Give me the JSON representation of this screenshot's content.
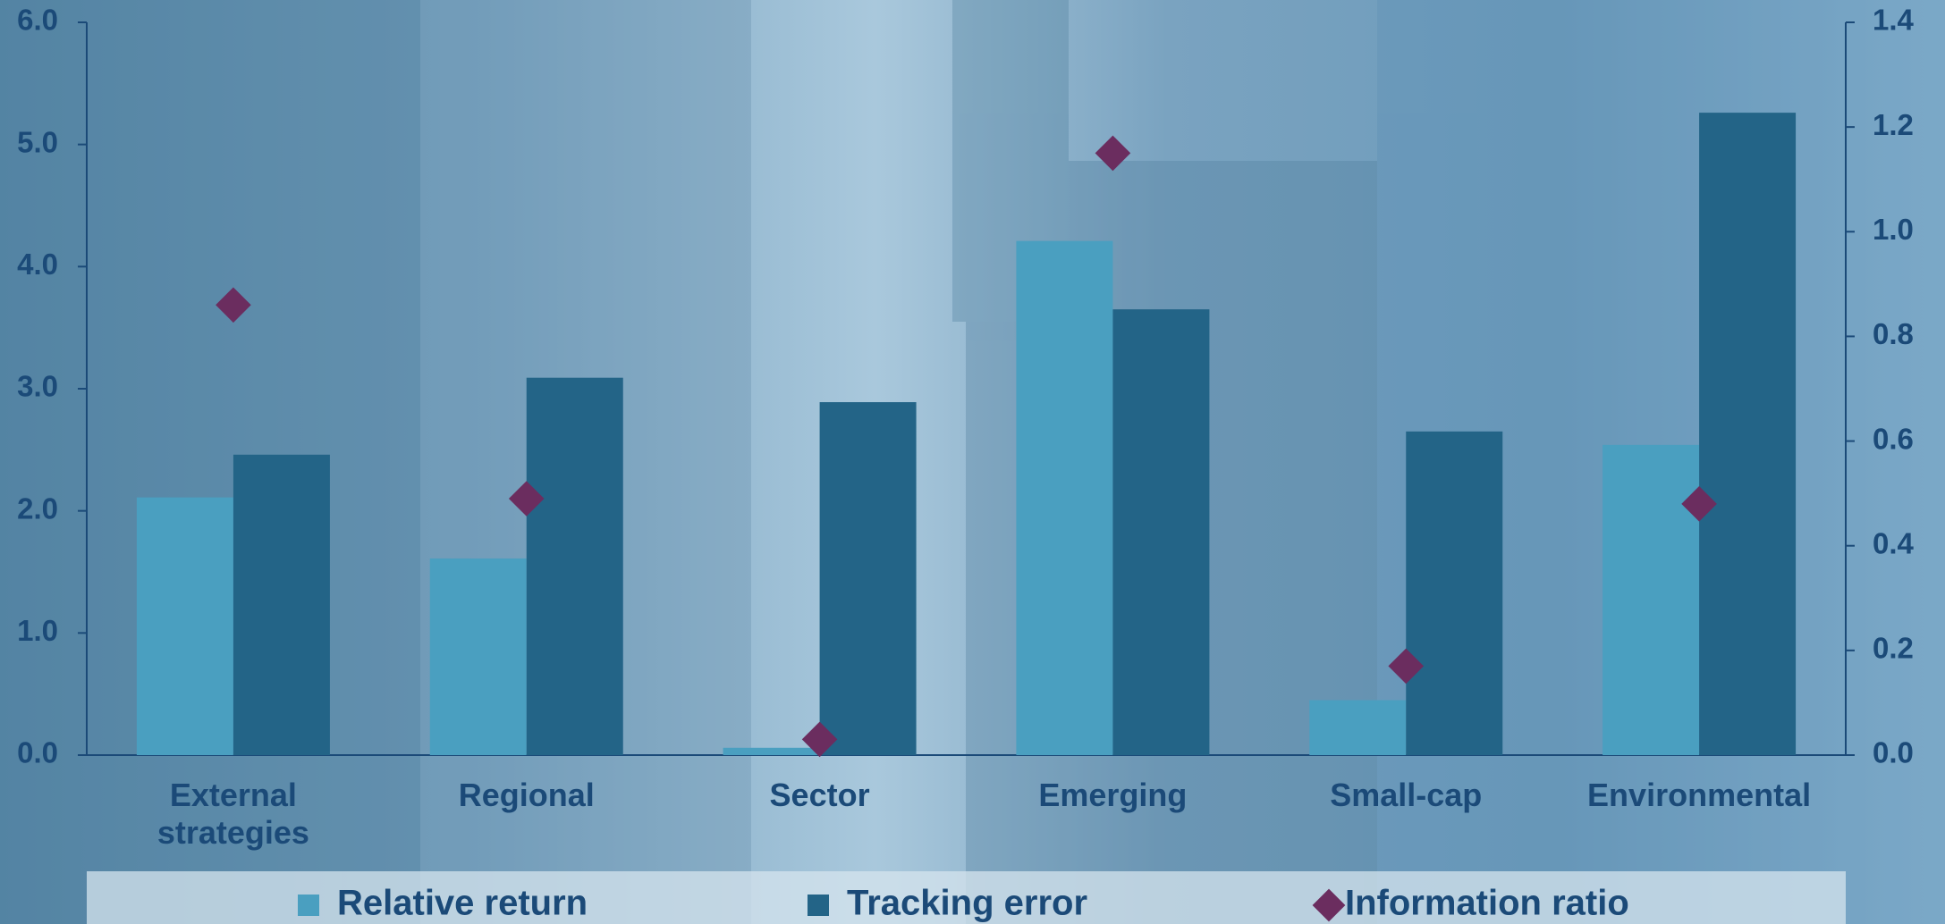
{
  "chart_data": {
    "type": "bar",
    "categories": [
      "External strategies",
      "Regional",
      "Sector",
      "Emerging",
      "Small-cap",
      "Environmental"
    ],
    "series": [
      {
        "name": "Relative return",
        "type": "bar",
        "color": "#4a9fc0",
        "values": [
          2.11,
          1.61,
          0.06,
          4.21,
          0.45,
          2.54
        ]
      },
      {
        "name": "Tracking error",
        "type": "bar",
        "color": "#236487",
        "values": [
          2.46,
          3.09,
          2.89,
          3.65,
          2.65,
          5.26
        ]
      },
      {
        "name": "Information ratio",
        "type": "scatter",
        "axis": "y2",
        "color": "#6b2d5f",
        "values": [
          0.86,
          0.49,
          0.03,
          1.15,
          0.17,
          0.48
        ]
      }
    ],
    "ylim": [
      0,
      6
    ],
    "yticks": [
      {
        "value": 0,
        "label": "0.0"
      },
      {
        "value": 1,
        "label": "1.0"
      },
      {
        "value": 2,
        "label": "2.0"
      },
      {
        "value": 3,
        "label": "3.0"
      },
      {
        "value": 4,
        "label": "4.0"
      },
      {
        "value": 5,
        "label": "5.0"
      },
      {
        "value": 6,
        "label": "6.0"
      }
    ],
    "y2lim": [
      0,
      1.4
    ],
    "y2ticks": [
      {
        "value": 0,
        "label": "0.0"
      },
      0.2,
      0.4,
      0.6,
      0.8,
      {
        "value": 1,
        "label": "1.0"
      },
      1.2,
      1.4
    ],
    "grid": false,
    "legend": "bottom"
  }
}
